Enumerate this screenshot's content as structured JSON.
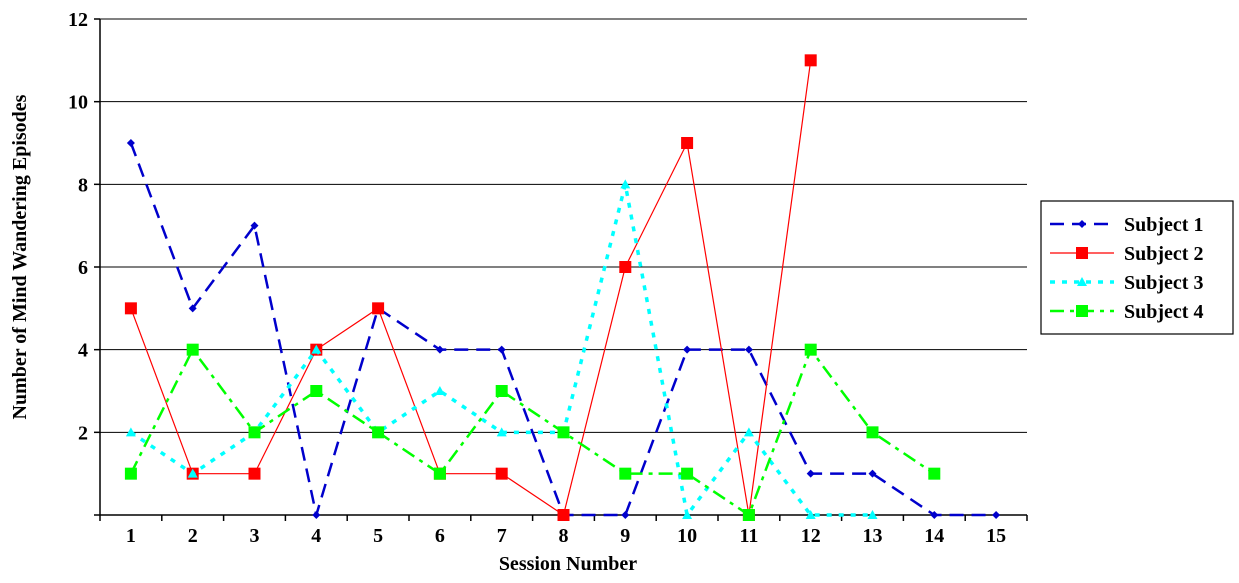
{
  "chart_data": {
    "type": "line",
    "title": "",
    "xlabel": "Session Number",
    "ylabel": "Number of Mind Wandering Episodes",
    "xlim": [
      0.5,
      15.5
    ],
    "ylim": [
      0,
      12
    ],
    "x_ticks": [
      "1",
      "2",
      "3",
      "4",
      "5",
      "6",
      "7",
      "8",
      "9",
      "10",
      "11",
      "12",
      "13",
      "14",
      "15"
    ],
    "y_ticks": [
      "2",
      "4",
      "6",
      "8",
      "10",
      "12"
    ],
    "y_tick_values": [
      2,
      4,
      6,
      8,
      10,
      12
    ],
    "grid": "horizontal",
    "legend_position": "right",
    "series": [
      {
        "name": "Subject 1",
        "color": "#0000CC",
        "line_style": "dashed",
        "marker": "diamond",
        "x": [
          1,
          2,
          3,
          4,
          5,
          6,
          7,
          8,
          9,
          10,
          11,
          12,
          13,
          14,
          15
        ],
        "y": [
          9,
          5,
          7,
          0,
          5,
          4,
          4,
          0,
          0,
          4,
          4,
          1,
          1,
          0,
          0
        ]
      },
      {
        "name": "Subject 2",
        "color": "#FF0000",
        "line_style": "solid",
        "marker": "square",
        "x": [
          1,
          2,
          3,
          4,
          5,
          6,
          7,
          8,
          9,
          10,
          11,
          12
        ],
        "y": [
          5,
          1,
          1,
          4,
          5,
          1,
          1,
          0,
          6,
          9,
          0,
          11
        ]
      },
      {
        "name": "Subject 3",
        "color": "#00FFFF",
        "line_style": "dotted",
        "marker": "triangle",
        "x": [
          1,
          2,
          3,
          4,
          5,
          6,
          7,
          8,
          9,
          10,
          11,
          12,
          13
        ],
        "y": [
          2,
          1,
          2,
          4,
          2,
          3,
          2,
          2,
          8,
          0,
          2,
          0,
          0
        ]
      },
      {
        "name": "Subject 4",
        "color": "#00FF00",
        "line_style": "dashdot",
        "marker": "square",
        "x": [
          1,
          2,
          3,
          4,
          5,
          6,
          7,
          8,
          9,
          10,
          11,
          12,
          13,
          14
        ],
        "y": [
          1,
          4,
          2,
          3,
          2,
          1,
          3,
          2,
          1,
          1,
          0,
          4,
          2,
          1
        ]
      }
    ]
  }
}
